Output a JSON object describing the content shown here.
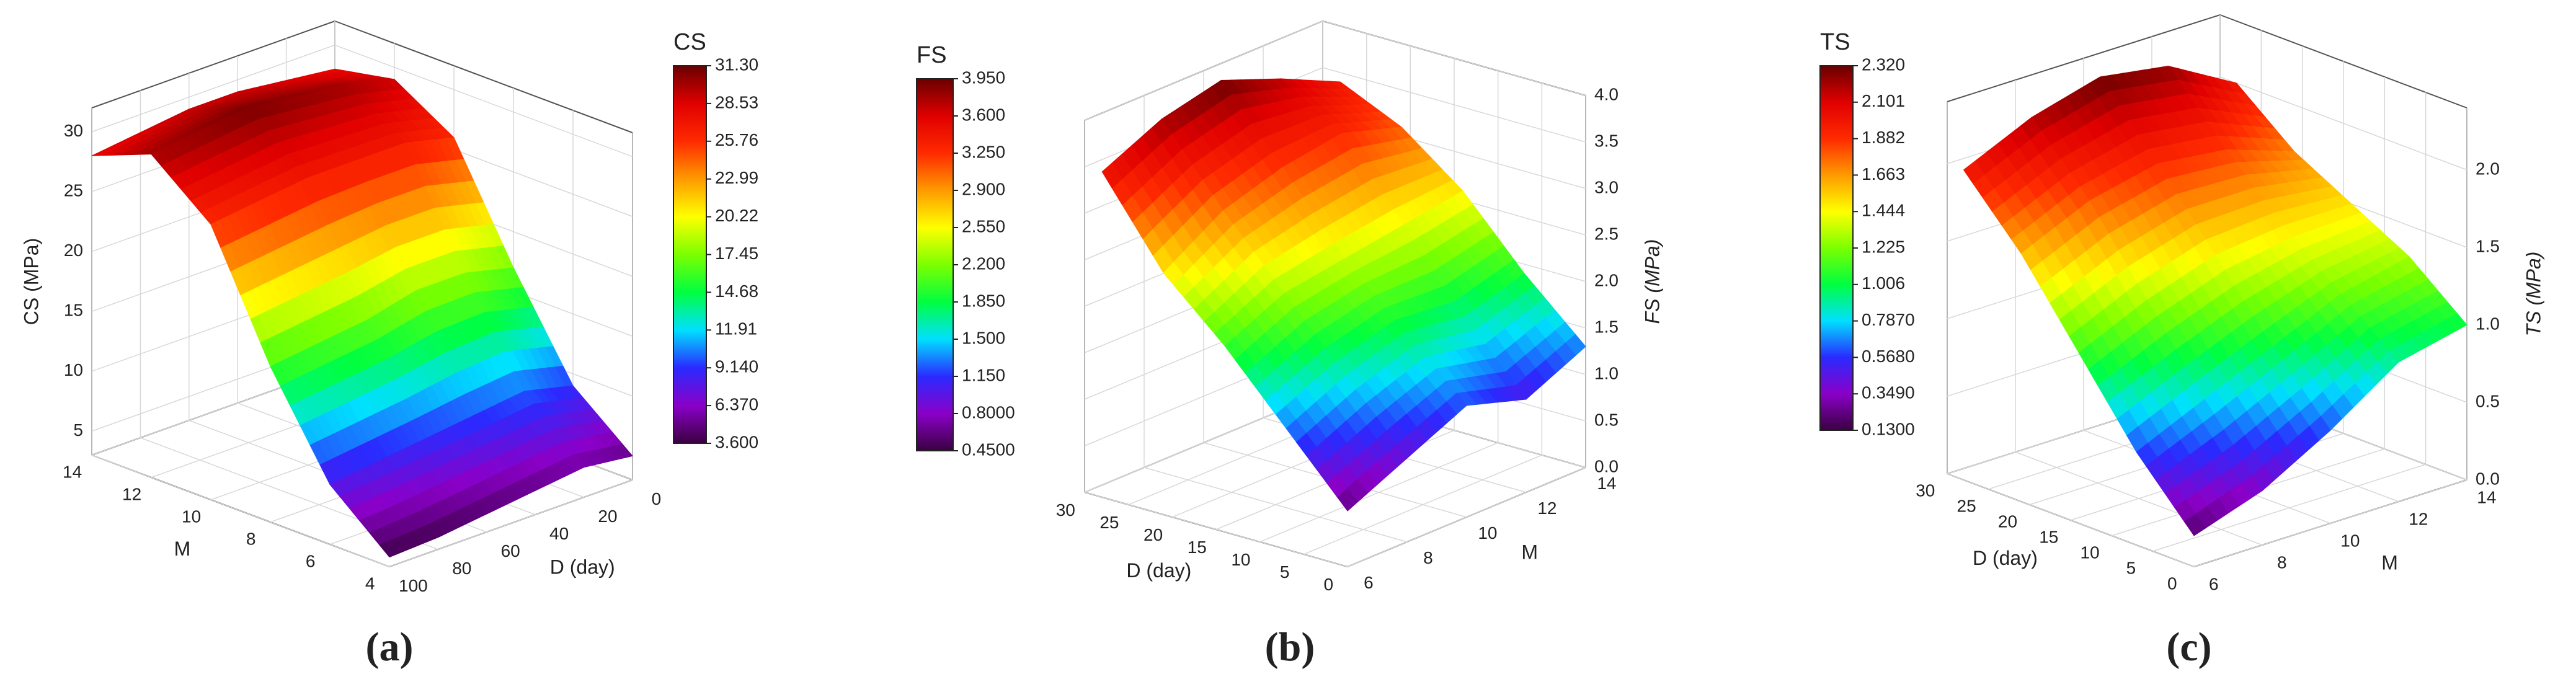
{
  "chart_data": [
    {
      "type": "surface",
      "colorbar_title": "CS",
      "panel_label": "(a)",
      "xlabel": "M",
      "ylabel": "D (day)",
      "zlabel": "CS (MPa)",
      "x": [
        4,
        6,
        8,
        10,
        12,
        14
      ],
      "y": [
        0,
        20,
        40,
        60,
        80,
        100
      ],
      "z": [
        [
          5,
          9,
          17,
          26,
          29,
          28
        ],
        [
          5.5,
          10,
          18,
          27,
          30,
          28.5
        ],
        [
          5,
          9.5,
          18,
          27,
          30.5,
          29
        ],
        [
          4.5,
          9,
          17,
          27,
          31,
          29
        ],
        [
          4,
          8.5,
          16.5,
          26.5,
          30.5,
          28.5
        ],
        [
          3.8,
          8,
          16,
          26,
          30,
          28
        ]
      ],
      "xlim": [
        4,
        14
      ],
      "ylim": [
        0,
        100
      ],
      "zlim": [
        3,
        32
      ],
      "xticks": [
        4,
        6,
        8,
        10,
        12,
        14
      ],
      "yticks": [
        0,
        20,
        40,
        60,
        80,
        100
      ],
      "zticks": [
        5,
        10,
        15,
        20,
        25,
        30
      ],
      "colorbar_ticks": [
        {
          "value": 3.6,
          "label": "3.600"
        },
        {
          "value": 6.37,
          "label": "6.370"
        },
        {
          "value": 9.14,
          "label": "9.140"
        },
        11.91,
        14.68,
        17.45,
        20.22,
        22.99,
        25.76,
        28.53,
        {
          "value": 31.3,
          "label": "31.30"
        }
      ],
      "colormap": [
        "#3a0040",
        "#8a00c8",
        "#2a2aff",
        "#00e0ff",
        "#00ff40",
        "#7cff00",
        "#ffff00",
        "#ff9a00",
        "#ff2a00",
        "#e00000",
        "#6a0000"
      ]
    },
    {
      "type": "surface",
      "colorbar_title": "FS",
      "panel_label": "(b)",
      "xlabel": "M",
      "ylabel": "D (day)",
      "zlabel": "FS (MPa)",
      "x": [
        6,
        8,
        10,
        12,
        14
      ],
      "y": [
        0,
        7,
        14,
        21,
        28
      ],
      "z": [
        [
          0.6,
          0.9,
          1.2,
          1.0,
          1.3
        ],
        [
          1.3,
          1.6,
          1.8,
          1.7,
          1.9
        ],
        [
          2.0,
          2.3,
          2.4,
          2.5,
          2.6
        ],
        [
          2.6,
          3.0,
          3.2,
          3.3,
          3.1
        ],
        [
          3.5,
          3.8,
          3.95,
          3.7,
          3.4
        ]
      ],
      "xlim": [
        6,
        14
      ],
      "ylim": [
        0,
        30
      ],
      "zlim": [
        0,
        4
      ],
      "xticks": [
        6,
        8,
        10,
        12,
        14
      ],
      "yticks": [
        0,
        5,
        10,
        15,
        20,
        25,
        30
      ],
      "zticks": [
        {
          "value": 0,
          "label": "0.0"
        },
        0.5,
        {
          "value": 1,
          "label": "1.0"
        },
        1.5,
        {
          "value": 2,
          "label": "2.0"
        },
        2.5,
        {
          "value": 3,
          "label": "3.0"
        },
        3.5,
        {
          "value": 4,
          "label": "4.0"
        }
      ],
      "colorbar_ticks": [
        {
          "value": 0.45,
          "label": "0.4500"
        },
        {
          "value": 0.8,
          "label": "0.8000"
        },
        {
          "value": 1.15,
          "label": "1.150"
        },
        {
          "value": 1.5,
          "label": "1.500"
        },
        {
          "value": 1.85,
          "label": "1.850"
        },
        {
          "value": 2.2,
          "label": "2.200"
        },
        {
          "value": 2.55,
          "label": "2.550"
        },
        {
          "value": 2.9,
          "label": "2.900"
        },
        {
          "value": 3.25,
          "label": "3.250"
        },
        {
          "value": 3.6,
          "label": "3.600"
        },
        {
          "value": 3.95,
          "label": "3.950"
        }
      ],
      "colormap": [
        "#3a0040",
        "#8a00c8",
        "#2a2aff",
        "#00e0ff",
        "#00ff40",
        "#7cff00",
        "#ffff00",
        "#ff9a00",
        "#ff2a00",
        "#e00000",
        "#6a0000"
      ]
    },
    {
      "type": "surface",
      "colorbar_title": "TS",
      "panel_label": "(c)",
      "xlabel": "M",
      "ylabel": "D (day)",
      "zlabel": "TS (MPa)",
      "x": [
        6,
        8,
        10,
        12,
        14
      ],
      "y": [
        0,
        7,
        14,
        21,
        28
      ],
      "z": [
        [
          0.2,
          0.35,
          0.6,
          0.9,
          1.0
        ],
        [
          0.6,
          0.8,
          1.0,
          1.2,
          1.3
        ],
        [
          1.1,
          1.3,
          1.45,
          1.5,
          1.5
        ],
        [
          1.6,
          1.8,
          1.9,
          1.85,
          1.7
        ],
        [
          2.0,
          2.2,
          2.32,
          2.25,
          2.0
        ]
      ],
      "xlim": [
        6,
        14
      ],
      "ylim": [
        0,
        30
      ],
      "zlim": [
        0,
        2.4
      ],
      "xticks": [
        6,
        8,
        10,
        12,
        14
      ],
      "yticks": [
        0,
        5,
        10,
        15,
        20,
        25,
        30
      ],
      "zticks": [
        {
          "value": 0,
          "label": "0.0"
        },
        0.5,
        {
          "value": 1,
          "label": "1.0"
        },
        1.5,
        {
          "value": 2,
          "label": "2.0"
        }
      ],
      "colorbar_ticks": [
        {
          "value": 0.13,
          "label": "0.1300"
        },
        {
          "value": 0.349,
          "label": "0.3490"
        },
        {
          "value": 0.568,
          "label": "0.5680"
        },
        {
          "value": 0.787,
          "label": "0.7870"
        },
        1.006,
        1.225,
        1.444,
        1.663,
        1.882,
        2.101,
        {
          "value": 2.32,
          "label": "2.320"
        }
      ],
      "colormap": [
        "#3a0040",
        "#8a00c8",
        "#2a2aff",
        "#00e0ff",
        "#00ff40",
        "#7cff00",
        "#ffff00",
        "#ff9a00",
        "#ff2a00",
        "#e00000",
        "#6a0000"
      ]
    }
  ]
}
